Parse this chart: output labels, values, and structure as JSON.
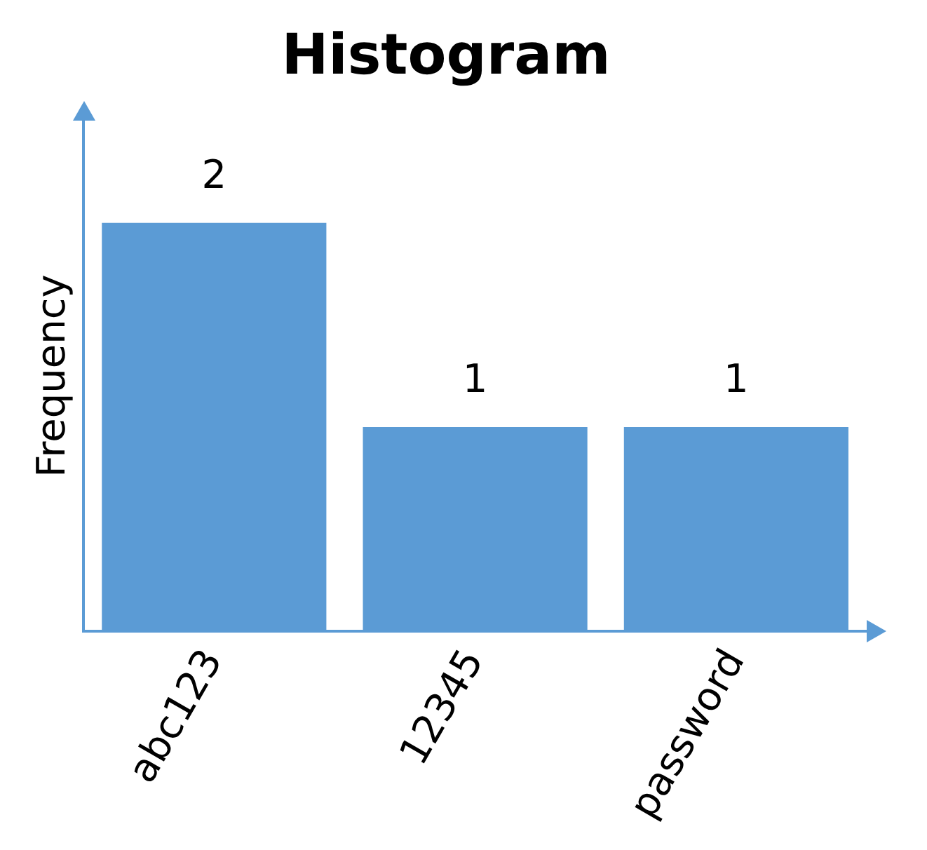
{
  "chart_data": {
    "type": "bar",
    "title": "Histogram",
    "ylabel": "Frequency",
    "categories": [
      "abc123",
      "12345",
      "password"
    ],
    "values": [
      2,
      1,
      1
    ],
    "color": "#5b9bd5",
    "data_labels": true,
    "tick_labels": "x",
    "grid": false,
    "legend": false
  }
}
